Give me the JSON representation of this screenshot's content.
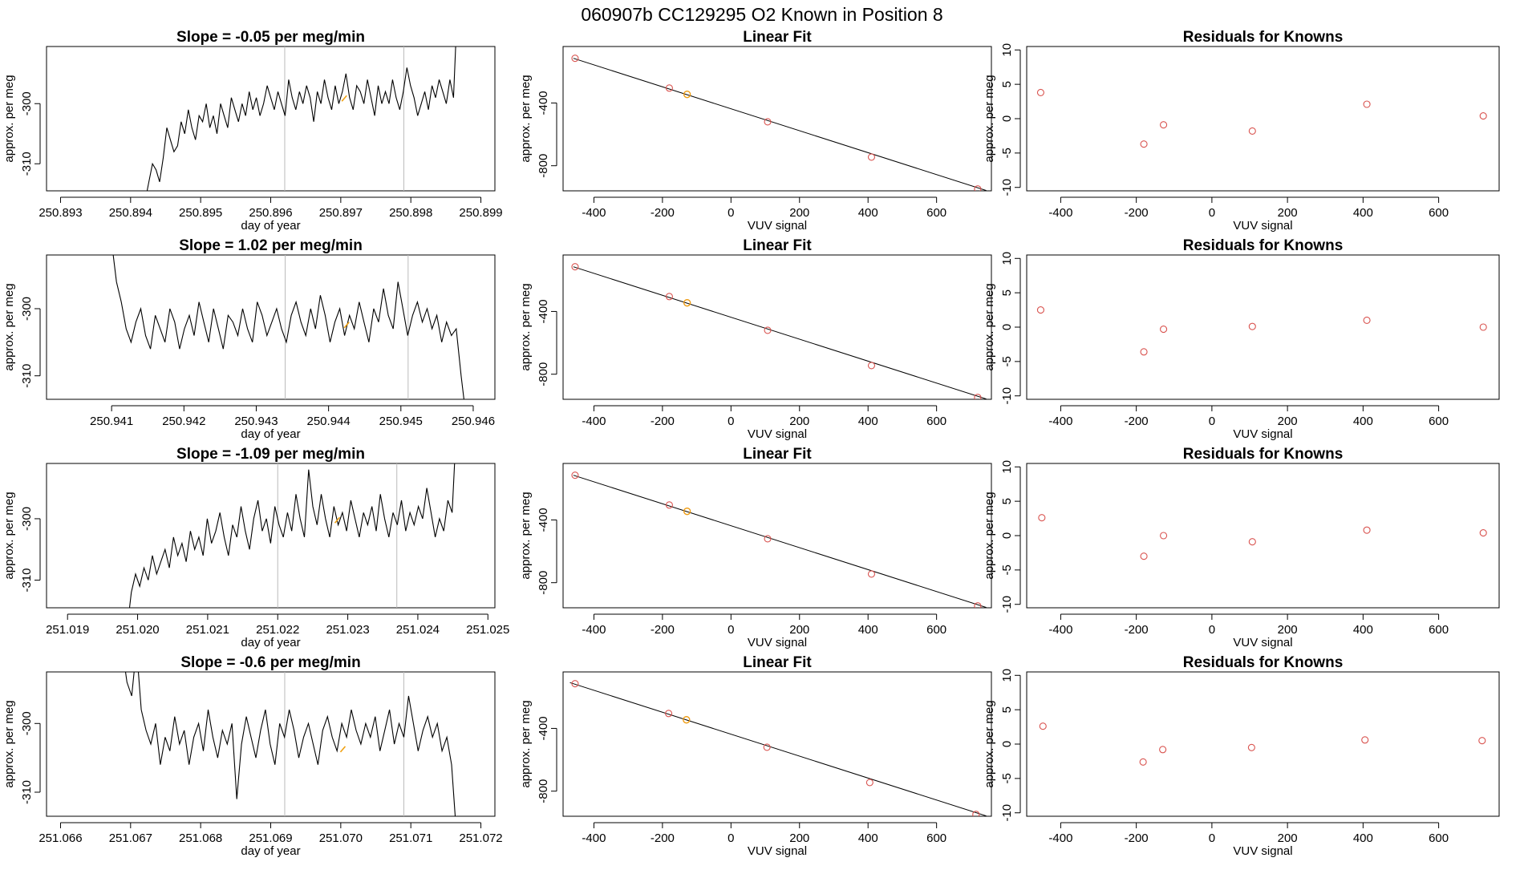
{
  "figure_title": "060907b      CC129295   O2 Known in Position  8",
  "chart_data": [
    {
      "type": "line",
      "row": 1,
      "col": 1,
      "title": "Slope =  -0.05  per meg/min",
      "xlabel": "day of year",
      "ylabel": "approx. per meg",
      "xlim": [
        250.8928,
        250.8992
      ],
      "ylim": [
        -314.5,
        -290.5
      ],
      "xticks": [
        250.893,
        250.894,
        250.895,
        250.896,
        250.897,
        250.898,
        250.899
      ],
      "xtick_labels": [
        "250.893",
        "250.894",
        "250.895",
        "250.896",
        "250.897",
        "250.898",
        "250.899"
      ],
      "yticks": [
        -300,
        -310
      ],
      "ytick_labels": [
        "-300",
        "-310"
      ],
      "vlines": [
        250.8962,
        250.8979
      ],
      "series_start": 250.89421,
      "series_end": 250.89866,
      "series_mean": -302.0,
      "series": [
        {
          "values": [
            -316,
            -313,
            -310,
            -311,
            -313,
            -309,
            -304,
            -306,
            -308,
            -307,
            -303,
            -305,
            -301,
            -304,
            -306,
            -302,
            -303,
            -300,
            -304,
            -302,
            -305,
            -300,
            -302,
            -304,
            -299,
            -301,
            -303,
            -300,
            -302,
            -298,
            -301,
            -299,
            -302,
            -300,
            -297,
            -299,
            -301,
            -298,
            -300,
            -302,
            -296,
            -299,
            -301,
            -298,
            -300,
            -297,
            -299,
            -303,
            -298,
            -300,
            -296,
            -299,
            -301,
            -297,
            -300,
            -298,
            -295,
            -299,
            -301,
            -297,
            -298,
            -300,
            -296,
            -299,
            -302,
            -297,
            -300,
            -298,
            -300,
            -296,
            -299,
            -301,
            -298,
            -294,
            -297,
            -299,
            -302,
            -300,
            -298,
            -301,
            -297,
            -299,
            -296,
            -298,
            -300,
            -296,
            -299,
            -285
          ]
        }
      ],
      "highlight": {
        "x": 250.89705,
        "y": -299.2
      }
    },
    {
      "type": "line",
      "row": 2,
      "col": 1,
      "title": "Slope =  1.02  per meg/min",
      "xlabel": "day of year",
      "ylabel": "approx. per meg",
      "xlim": [
        250.9401,
        250.9463
      ],
      "ylim": [
        -313.5,
        -292
      ],
      "xticks": [
        250.941,
        250.942,
        250.943,
        250.944,
        250.945,
        250.946
      ],
      "xtick_labels": [
        "250.941",
        "250.942",
        "250.943",
        "250.944",
        "250.945",
        "250.946"
      ],
      "yticks": [
        -300,
        -310
      ],
      "ytick_labels": [
        "-300",
        "-310"
      ],
      "vlines": [
        250.9434,
        250.9451
      ],
      "series_start": 250.941,
      "series_end": 250.9459,
      "series_mean": -302.8,
      "series": [
        {
          "values": [
            -290,
            -296,
            -299,
            -303,
            -305,
            -302,
            -300,
            -304,
            -306,
            -301,
            -303,
            -305,
            -300,
            -302,
            -306,
            -303,
            -301,
            -304,
            -299,
            -302,
            -305,
            -300,
            -303,
            -306,
            -301,
            -302,
            -304,
            -300,
            -303,
            -305,
            -299,
            -301,
            -304,
            -302,
            -300,
            -303,
            -305,
            -301,
            -299,
            -302,
            -304,
            -300,
            -303,
            -298,
            -301,
            -305,
            -302,
            -300,
            -304,
            -301,
            -303,
            -299,
            -302,
            -305,
            -300,
            -302,
            -297,
            -301,
            -303,
            -296,
            -300,
            -304,
            -301,
            -299,
            -302,
            -300,
            -303,
            -301,
            -305,
            -302,
            -304,
            -303,
            -310,
            -316
          ]
        }
      ],
      "highlight": {
        "x": 250.94425,
        "y": -302.5
      }
    },
    {
      "type": "line",
      "row": 3,
      "col": 1,
      "title": "Slope =  -1.09  per meg/min",
      "xlabel": "day of year",
      "ylabel": "approx. per meg",
      "xlim": [
        251.0187,
        251.0251
      ],
      "ylim": [
        -314.5,
        -291
      ],
      "xticks": [
        251.019,
        251.02,
        251.021,
        251.022,
        251.023,
        251.024,
        251.025
      ],
      "xtick_labels": [
        "251.019",
        "251.020",
        "251.021",
        "251.022",
        "251.023",
        "251.024",
        "251.025"
      ],
      "yticks": [
        -300,
        -310
      ],
      "ytick_labels": [
        "-300",
        "-310"
      ],
      "vlines": [
        251.022,
        251.0237
      ],
      "series_start": 251.01985,
      "series_end": 251.02455,
      "series_mean": -302.5,
      "series": [
        {
          "values": [
            -318,
            -312,
            -309,
            -311,
            -308,
            -310,
            -306,
            -309,
            -307,
            -305,
            -308,
            -303,
            -306,
            -304,
            -307,
            -302,
            -305,
            -303,
            -306,
            -300,
            -304,
            -302,
            -299,
            -303,
            -306,
            -301,
            -303,
            -298,
            -302,
            -305,
            -300,
            -297,
            -302,
            -300,
            -304,
            -298,
            -301,
            -303,
            -299,
            -302,
            -296,
            -300,
            -303,
            -292,
            -298,
            -301,
            -296,
            -300,
            -303,
            -298,
            -301,
            -299,
            -302,
            -297,
            -300,
            -303,
            -299,
            -301,
            -298,
            -302,
            -296,
            -300,
            -303,
            -299,
            -301,
            -297,
            -302,
            -299,
            -301,
            -298,
            -300,
            -295,
            -299,
            -303,
            -300,
            -302,
            -297,
            -299,
            -285
          ]
        }
      ],
      "highlight": {
        "x": 251.02285,
        "y": -300.3
      }
    },
    {
      "type": "line",
      "row": 4,
      "col": 1,
      "title": "Slope =  -0.6  per meg/min",
      "xlabel": "day of year",
      "ylabel": "approx. per meg",
      "xlim": [
        251.0658,
        251.0722
      ],
      "ylim": [
        -313.5,
        -292.5
      ],
      "xticks": [
        251.066,
        251.067,
        251.068,
        251.069,
        251.07,
        251.071,
        251.072
      ],
      "xtick_labels": [
        "251.066",
        "251.067",
        "251.068",
        "251.069",
        "251.070",
        "251.071",
        "251.072"
      ],
      "yticks": [
        -300,
        -310
      ],
      "ytick_labels": [
        "-300",
        "-310"
      ],
      "vlines": [
        251.0692,
        251.0709
      ],
      "series_start": 251.06688,
      "series_end": 251.07165,
      "series_mean": -303.0,
      "series": [
        {
          "values": [
            -289,
            -294,
            -296,
            -289,
            -298,
            -301,
            -303,
            -300,
            -306,
            -302,
            -304,
            -299,
            -303,
            -301,
            -306,
            -302,
            -300,
            -304,
            -298,
            -302,
            -305,
            -301,
            -303,
            -300,
            -311,
            -303,
            -299,
            -302,
            -305,
            -301,
            -298,
            -303,
            -306,
            -300,
            -302,
            -298,
            -301,
            -305,
            -302,
            -300,
            -303,
            -306,
            -301,
            -299,
            -302,
            -304,
            -300,
            -302,
            -298,
            -301,
            -303,
            -300,
            -302,
            -299,
            -304,
            -301,
            -298,
            -303,
            -300,
            -302,
            -296,
            -300,
            -304,
            -301,
            -299,
            -302,
            -300,
            -304,
            -302,
            -306,
            -316
          ]
        }
      ],
      "highlight": {
        "x": 251.07003,
        "y": -303.8
      }
    },
    {
      "type": "line",
      "row": 1,
      "col": 2,
      "title": "Linear Fit",
      "xlabel": "VUV signal",
      "ylabel": "approx. per meg",
      "xlim": [
        -490,
        760
      ],
      "ylim": [
        -960,
        -40
      ],
      "xticks": [
        -400,
        -200,
        0,
        200,
        400,
        600
      ],
      "xtick_labels": [
        "-400",
        "-200",
        "0",
        "200",
        "400",
        "600"
      ],
      "yticks": [
        -400,
        -800
      ],
      "ytick_labels": [
        "-400",
        "-800"
      ],
      "line": {
        "x": [
          -460,
          745
        ],
        "y": [
          -115,
          -958
        ]
      },
      "points": {
        "x": [
          -455,
          -180,
          -128,
          107,
          410,
          720
        ],
        "y": [
          -115,
          -305,
          -345,
          -520,
          -745,
          -948
        ]
      },
      "highlight": {
        "x": -128,
        "y": -345
      }
    },
    {
      "type": "line",
      "row": 2,
      "col": 2,
      "title": "Linear Fit",
      "xlabel": "VUV signal",
      "ylabel": "approx. per meg",
      "xlim": [
        -490,
        760
      ],
      "ylim": [
        -960,
        -40
      ],
      "xticks": [
        -400,
        -200,
        0,
        200,
        400,
        600
      ],
      "xtick_labels": [
        "-400",
        "-200",
        "0",
        "200",
        "400",
        "600"
      ],
      "yticks": [
        -400,
        -800
      ],
      "ytick_labels": [
        "-400",
        "-800"
      ],
      "line": {
        "x": [
          -460,
          745
        ],
        "y": [
          -115,
          -958
        ]
      },
      "points": {
        "x": [
          -455,
          -180,
          -128,
          107,
          410,
          720
        ],
        "y": [
          -115,
          -305,
          -345,
          -520,
          -745,
          -948
        ]
      },
      "highlight": {
        "x": -128,
        "y": -345
      }
    },
    {
      "type": "line",
      "row": 3,
      "col": 2,
      "title": "Linear Fit",
      "xlabel": "VUV signal",
      "ylabel": "approx. per meg",
      "xlim": [
        -490,
        760
      ],
      "ylim": [
        -960,
        -40
      ],
      "xticks": [
        -400,
        -200,
        0,
        200,
        400,
        600
      ],
      "xtick_labels": [
        "-400",
        "-200",
        "0",
        "200",
        "400",
        "600"
      ],
      "yticks": [
        -400,
        -800
      ],
      "ytick_labels": [
        "-400",
        "-800"
      ],
      "line": {
        "x": [
          -460,
          745
        ],
        "y": [
          -115,
          -958
        ]
      },
      "points": {
        "x": [
          -455,
          -180,
          -128,
          107,
          410,
          720
        ],
        "y": [
          -115,
          -305,
          -345,
          -520,
          -745,
          -948
        ]
      },
      "highlight": {
        "x": -128,
        "y": -345
      }
    },
    {
      "type": "line",
      "row": 4,
      "col": 2,
      "title": "Linear Fit",
      "xlabel": "VUV signal",
      "ylabel": "approx. per meg",
      "xlim": [
        -490,
        760
      ],
      "ylim": [
        -960,
        -40
      ],
      "xticks": [
        -400,
        -200,
        0,
        200,
        400,
        600
      ],
      "xtick_labels": [
        "-400",
        "-200",
        "0",
        "200",
        "400",
        "600"
      ],
      "yticks": [
        -400,
        -800
      ],
      "ytick_labels": [
        "-400",
        "-800"
      ],
      "line": {
        "x": [
          -470,
          745
        ],
        "y": [
          -108,
          -958
        ]
      },
      "points": {
        "x": [
          -455,
          -182,
          -130,
          105,
          405,
          715
        ],
        "y": [
          -115,
          -305,
          -345,
          -520,
          -745,
          -948
        ]
      },
      "highlight": {
        "x": -130,
        "y": -345
      }
    },
    {
      "type": "scatter",
      "row": 1,
      "col": 3,
      "title": "Residuals for Knowns",
      "xlabel": "VUV signal",
      "ylabel": "approx. per meg",
      "xlim": [
        -490,
        760
      ],
      "ylim": [
        -10.5,
        10.5
      ],
      "xticks": [
        -400,
        -200,
        0,
        200,
        400,
        600
      ],
      "xtick_labels": [
        "-400",
        "-200",
        "0",
        "200",
        "400",
        "600"
      ],
      "yticks": [
        10,
        5,
        0,
        -5,
        -10
      ],
      "ytick_labels": [
        "10",
        "5",
        "0",
        "-5",
        "-10"
      ],
      "points": {
        "x": [
          -453,
          -180,
          -128,
          107,
          410,
          718
        ],
        "y": [
          3.8,
          -3.7,
          -0.9,
          -1.8,
          2.1,
          0.4
        ]
      }
    },
    {
      "type": "scatter",
      "row": 2,
      "col": 3,
      "title": "Residuals for Knowns",
      "xlabel": "VUV signal",
      "ylabel": "approx. per meg",
      "xlim": [
        -490,
        760
      ],
      "ylim": [
        -10.5,
        10.5
      ],
      "xticks": [
        -400,
        -200,
        0,
        200,
        400,
        600
      ],
      "xtick_labels": [
        "-400",
        "-200",
        "0",
        "200",
        "400",
        "600"
      ],
      "yticks": [
        10,
        5,
        0,
        -5,
        -10
      ],
      "ytick_labels": [
        "10",
        "5",
        "0",
        "-5",
        "-10"
      ],
      "points": {
        "x": [
          -453,
          -180,
          -128,
          107,
          410,
          718
        ],
        "y": [
          2.5,
          -3.6,
          -0.3,
          0.1,
          1.0,
          0.0
        ]
      }
    },
    {
      "type": "scatter",
      "row": 3,
      "col": 3,
      "title": "Residuals for Knowns",
      "xlabel": "VUV signal",
      "ylabel": "approx. per meg",
      "xlim": [
        -490,
        760
      ],
      "ylim": [
        -10.5,
        10.5
      ],
      "xticks": [
        -400,
        -200,
        0,
        200,
        400,
        600
      ],
      "xtick_labels": [
        "-400",
        "-200",
        "0",
        "200",
        "400",
        "600"
      ],
      "yticks": [
        10,
        5,
        0,
        -5,
        -10
      ],
      "ytick_labels": [
        "10",
        "5",
        "0",
        "-5",
        "-10"
      ],
      "points": {
        "x": [
          -450,
          -180,
          -128,
          107,
          410,
          718
        ],
        "y": [
          2.6,
          -3.0,
          0.0,
          -0.9,
          0.8,
          0.4
        ]
      }
    },
    {
      "type": "scatter",
      "row": 4,
      "col": 3,
      "title": "Residuals for Knowns",
      "xlabel": "VUV signal",
      "ylabel": "approx. per meg",
      "xlim": [
        -490,
        760
      ],
      "ylim": [
        -10.5,
        10.5
      ],
      "xticks": [
        -400,
        -200,
        0,
        200,
        400,
        600
      ],
      "xtick_labels": [
        "-400",
        "-200",
        "0",
        "200",
        "400",
        "600"
      ],
      "yticks": [
        10,
        5,
        0,
        -5,
        -10
      ],
      "ytick_labels": [
        "10",
        "5",
        "0",
        "-5",
        "-10"
      ],
      "points": {
        "x": [
          -447,
          -182,
          -130,
          105,
          405,
          715
        ],
        "y": [
          2.6,
          -2.6,
          -0.8,
          -0.5,
          0.6,
          0.5
        ]
      }
    }
  ],
  "colors": {
    "line": "#000000",
    "point": "#d9534f",
    "highlight": "#f0a010",
    "vline": "#bbbbbb",
    "axis": "#000000"
  }
}
